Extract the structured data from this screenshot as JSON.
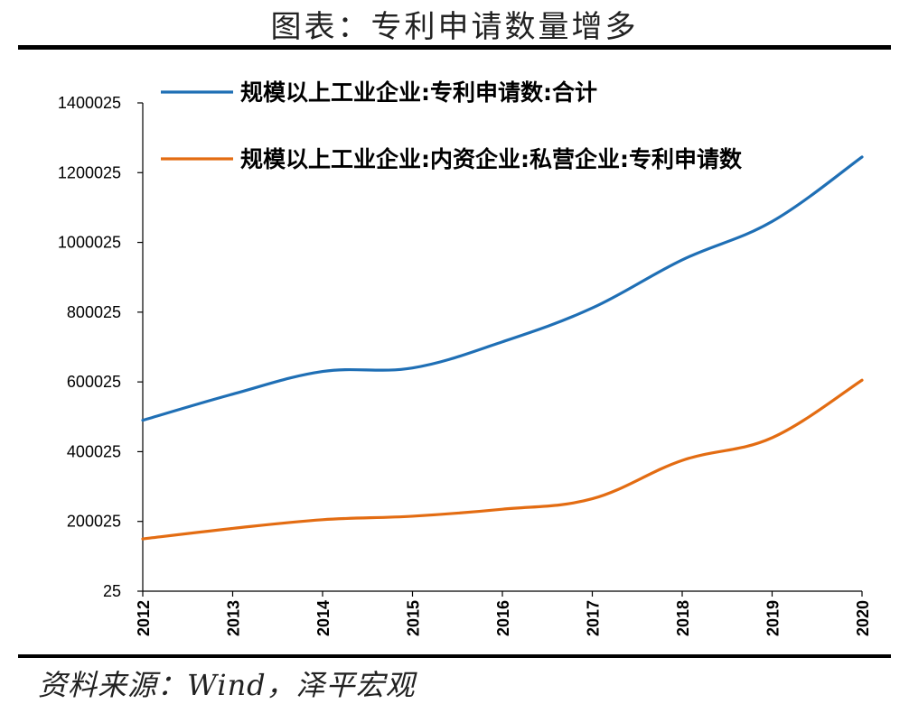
{
  "header": {
    "title": "图表：专利申请数量增多"
  },
  "footer": {
    "source": "资料来源：Wind，泽平宏观"
  },
  "chart_data": {
    "type": "line",
    "x": [
      "2012",
      "2013",
      "2014",
      "2015",
      "2016",
      "2017",
      "2018",
      "2019",
      "2020"
    ],
    "yticks": [
      "25",
      "200025",
      "400025",
      "600025",
      "800025",
      "1000025",
      "1200025",
      "1400025"
    ],
    "ylim": [
      25,
      1400025
    ],
    "grid": false,
    "legend_position": "top",
    "series": [
      {
        "name": "规模以上工业企业:专利申请数:合计",
        "color": "#1f6fb5",
        "values": [
          490000,
          565000,
          630000,
          640000,
          715000,
          812000,
          950000,
          1060000,
          1245000
        ]
      },
      {
        "name": "规模以上工业企业:内资企业:私营企业:专利申请数",
        "color": "#e36c12",
        "values": [
          150000,
          180000,
          205000,
          215000,
          235000,
          265000,
          375000,
          440000,
          605000
        ]
      }
    ]
  }
}
